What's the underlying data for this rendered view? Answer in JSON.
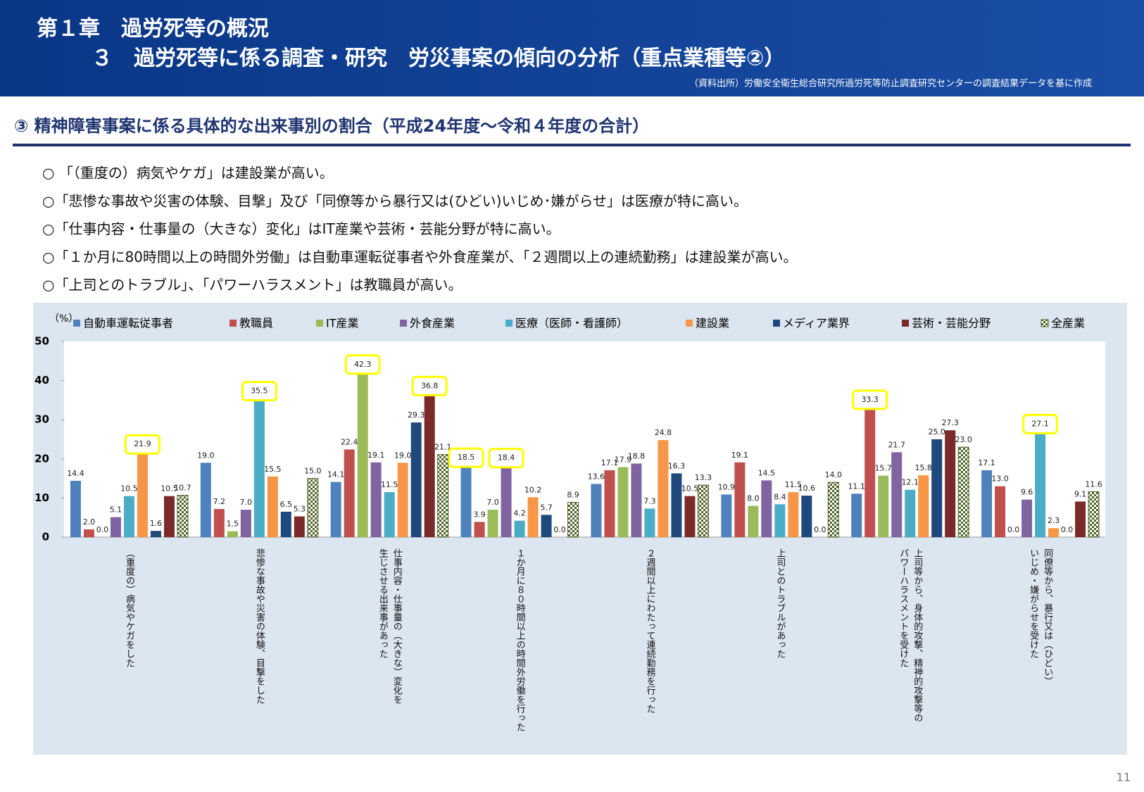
{
  "header": {
    "title_line1": "第１章　過労死等の概況",
    "title_line2": "３　過労死等に係る調査・研究　労災事案の傾向の分析（重点業種等②）",
    "source": "（資料出所）労働安全衛生総合研究所過労死等防止調査研究センターの調査結果データを基に作成"
  },
  "section_title": "③ 精神障害事案に係る具体的な出来事別の割合（平成24年度～令和４年度の合計）",
  "bullets": [
    "○ 「（重度の）病気やケガ」は建設業が高い。",
    "○「悲惨な事故や災害の体験、目撃」及び「同僚等から暴行又は(ひどい)いじめ･嫌がらせ」は医療が特に高い。",
    "○「仕事内容・仕事量の（大きな）変化」はIT産業や芸術・芸能分野が特に高い。",
    "○「１か月に80時間以上の時間外労働」は自動車運転従事者や外食産業が、「２週間以上の連続勤務」は建設業が高い。",
    "○「上司とのトラブル」、「パワーハラスメント」は教職員が高い。"
  ],
  "page_number": "11",
  "chart_data": {
    "type": "bar",
    "y_label": "（%）",
    "categories": [
      [
        "（重度の）病気やケガをした"
      ],
      [
        "悲惨な事故や災害の体験、目撃をした"
      ],
      [
        "仕事内容・仕事量の（大きな）変化を",
        "生じさせる出来事があった"
      ],
      [
        "１か月に８０時間以上の時間外労働を行った"
      ],
      [
        "２週間以上にわたって連続勤務を行った"
      ],
      [
        "上司とのトラブルがあった"
      ],
      [
        "上司等から、身体的攻撃、精神的攻撃等の",
        "パワーハラスメントを受けた"
      ],
      [
        "同僚等から、暴行又は（ひどい）",
        "いじめ・嫌がらせを受けた"
      ]
    ],
    "ylim": [
      0,
      50
    ],
    "yticks": [
      0,
      10,
      20,
      30,
      40,
      50
    ],
    "highlight_color": "#ffff00",
    "series": [
      {
        "name": "自動車運転従事者",
        "color": "#4f81bd",
        "values": [
          14.4,
          19.0,
          14.1,
          18.5,
          13.6,
          10.9,
          11.1,
          17.1
        ],
        "value_labels": [
          "14.4",
          "19.0",
          "14.1",
          "18.5",
          "13.6",
          "10.9",
          "11.1",
          "17.1"
        ],
        "highlighted": [
          false,
          false,
          false,
          true,
          false,
          false,
          false,
          false
        ]
      },
      {
        "name": "教職員",
        "color": "#c0504d",
        "values": [
          2.0,
          7.2,
          22.4,
          3.9,
          17.1,
          19.1,
          33.3,
          13.0
        ],
        "value_labels": [
          "2.0",
          "7.2",
          "22.4",
          "3.9",
          "17.1",
          "19.1",
          "33.3",
          "13.0"
        ],
        "highlighted": [
          false,
          false,
          false,
          false,
          false,
          false,
          true,
          false
        ]
      },
      {
        "name": "IT産業",
        "color": "#9bbb59",
        "values": [
          0.0,
          1.5,
          42.3,
          7.0,
          17.9,
          8.0,
          15.7,
          0.0
        ],
        "value_labels": [
          "0.0",
          "1.5",
          "42.3",
          "7.0",
          "17.9",
          "8.0",
          "15.7",
          "0.0"
        ],
        "highlighted": [
          false,
          false,
          true,
          false,
          false,
          false,
          false,
          false
        ]
      },
      {
        "name": "外食産業",
        "color": "#8064a2",
        "values": [
          5.1,
          7.0,
          19.1,
          18.4,
          18.8,
          14.5,
          21.7,
          9.6
        ],
        "value_labels": [
          "5.1",
          "7.0",
          "19.1",
          "18.4",
          "18.8",
          "14.5",
          "21.7",
          "9.6"
        ],
        "highlighted": [
          false,
          false,
          false,
          true,
          false,
          false,
          false,
          false
        ]
      },
      {
        "name": "医療（医師・看護師）",
        "color": "#4bacc6",
        "values": [
          10.5,
          35.5,
          11.5,
          4.2,
          7.3,
          8.4,
          12.1,
          27.1
        ],
        "value_labels": [
          "10.5",
          "35.5",
          "11.5",
          "4.2",
          "7.3",
          "8.4",
          "12.1",
          "27.1"
        ],
        "highlighted": [
          false,
          true,
          false,
          false,
          false,
          false,
          false,
          true
        ]
      },
      {
        "name": "建設業",
        "color": "#f79646",
        "values": [
          21.9,
          15.5,
          19.0,
          10.2,
          24.8,
          11.5,
          15.8,
          2.3
        ],
        "value_labels": [
          "21.9",
          "15.5",
          "19.0",
          "10.2",
          "24.8",
          "11.5",
          "15.8",
          "2.3"
        ],
        "highlighted": [
          true,
          false,
          false,
          false,
          false,
          false,
          false,
          false
        ]
      },
      {
        "name": "メディア業界",
        "color": "#1f497d",
        "values": [
          1.6,
          6.5,
          29.3,
          5.7,
          16.3,
          10.6,
          25.0,
          0.0
        ],
        "value_labels": [
          "1.6",
          "6.5",
          "29.3",
          "5.7",
          "16.3",
          "10.6",
          "25.0",
          "0.0"
        ],
        "highlighted": [
          false,
          false,
          false,
          false,
          false,
          false,
          false,
          false
        ]
      },
      {
        "name": "芸術・芸能分野",
        "color": "#7b2a2a",
        "values": [
          10.5,
          5.3,
          36.8,
          0.0,
          10.5,
          0.0,
          27.3,
          9.1
        ],
        "value_labels": [
          "10.5",
          "5.3",
          "36.8",
          "0.0",
          "10.5",
          "0.0",
          "27.3",
          "9.1"
        ],
        "highlighted": [
          false,
          false,
          true,
          false,
          false,
          false,
          false,
          false
        ]
      },
      {
        "name": "全産業",
        "color": "#4f6228",
        "pattern": "checker",
        "values": [
          10.7,
          15.0,
          21.1,
          8.9,
          13.3,
          14.0,
          23.0,
          11.6
        ],
        "value_labels": [
          "10.7",
          "15.0",
          "21.1",
          "8.9",
          "13.3",
          "14.0",
          "23.0",
          "11.6"
        ],
        "highlighted": [
          false,
          false,
          false,
          false,
          false,
          false,
          false,
          false
        ]
      }
    ]
  }
}
